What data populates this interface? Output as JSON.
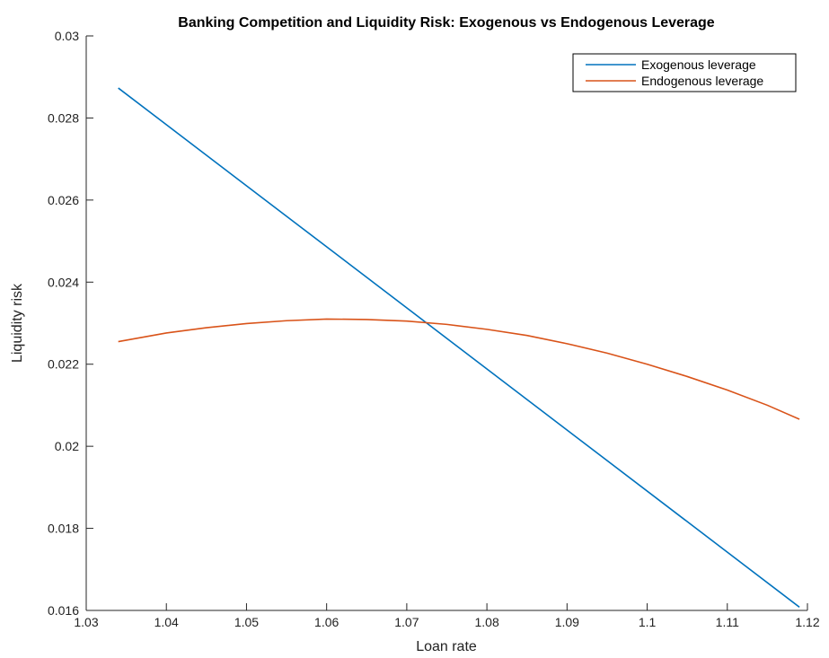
{
  "chart_data": {
    "type": "line",
    "title": "Banking Competition and Liquidity Risk: Exogenous vs Endogenous Leverage",
    "xlabel": "Loan rate",
    "ylabel": "Liquidity risk",
    "xlim": [
      1.03,
      1.12
    ],
    "ylim": [
      0.016,
      0.03
    ],
    "xticks": [
      1.03,
      1.04,
      1.05,
      1.06,
      1.07,
      1.08,
      1.09,
      1.1,
      1.11,
      1.12
    ],
    "xtick_labels": [
      "1.03",
      "1.04",
      "1.05",
      "1.06",
      "1.07",
      "1.08",
      "1.09",
      "1.1",
      "1.11",
      "1.12"
    ],
    "yticks": [
      0.016,
      0.018,
      0.02,
      0.022,
      0.024,
      0.026,
      0.028,
      0.03
    ],
    "ytick_labels": [
      "0.016",
      "0.018",
      "0.02",
      "0.022",
      "0.024",
      "0.026",
      "0.028",
      "0.03"
    ],
    "grid": false,
    "legend_position": "top-right",
    "series": [
      {
        "name": "Exogenous leverage",
        "color": "#0072BD",
        "x": [
          1.034,
          1.119
        ],
        "y": [
          0.02873,
          0.01608
        ]
      },
      {
        "name": "Endogenous leverage",
        "color": "#D95319",
        "x": [
          1.034,
          1.04,
          1.045,
          1.05,
          1.055,
          1.06,
          1.065,
          1.07,
          1.075,
          1.08,
          1.085,
          1.09,
          1.095,
          1.1,
          1.105,
          1.11,
          1.115,
          1.119
        ],
        "y": [
          0.02255,
          0.02276,
          0.02289,
          0.02299,
          0.02306,
          0.0231,
          0.02309,
          0.02305,
          0.02297,
          0.02285,
          0.0227,
          0.0225,
          0.02227,
          0.022,
          0.0217,
          0.02137,
          0.021,
          0.02066
        ]
      }
    ]
  }
}
